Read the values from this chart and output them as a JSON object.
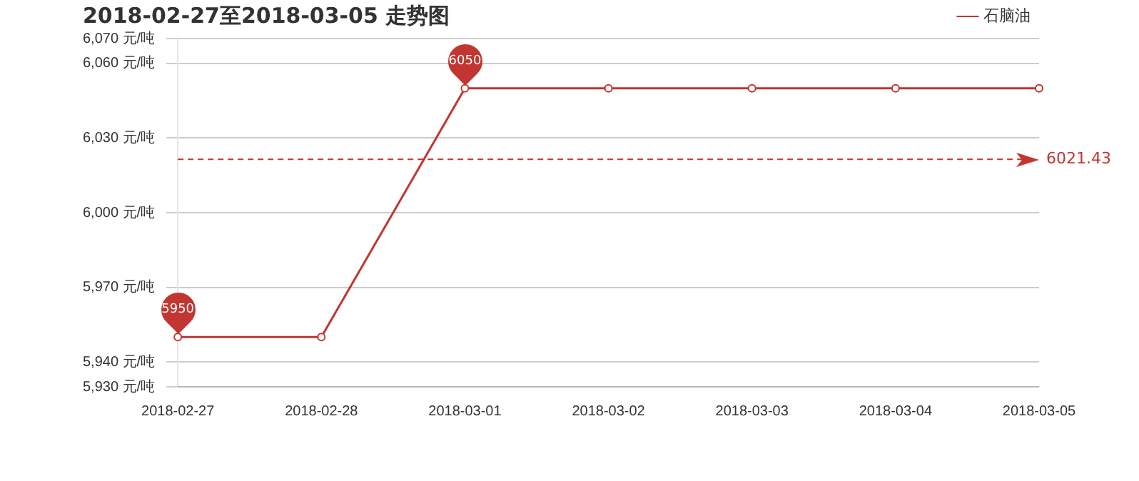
{
  "chart_data": {
    "type": "line",
    "title": "2018-02-27至2018-03-05 走势图",
    "categories": [
      "2018-02-27",
      "2018-02-28",
      "2018-03-01",
      "2018-03-02",
      "2018-03-03",
      "2018-03-04",
      "2018-03-05"
    ],
    "series": [
      {
        "name": "石脑油",
        "color": "#c23531",
        "values": [
          5950,
          5950,
          6050,
          6050,
          6050,
          6050,
          6050
        ]
      }
    ],
    "ylim": [
      5930,
      6070
    ],
    "yticks": [
      {
        "value": 5930,
        "label": "5,930 元/吨"
      },
      {
        "value": 5940,
        "label": "5,940 元/吨"
      },
      {
        "value": 5970,
        "label": "5,970 元/吨"
      },
      {
        "value": 6000,
        "label": "6,000 元/吨"
      },
      {
        "value": 6030,
        "label": "6,030 元/吨"
      },
      {
        "value": 6060,
        "label": "6,060 元/吨"
      },
      {
        "value": 6070,
        "label": "6,070 元/吨"
      }
    ],
    "ref_lines": [
      {
        "axis": "y",
        "value": 6021.43,
        "label": "6021.43",
        "color": "#c23531",
        "line_style": "dashed"
      }
    ],
    "annotations": [
      {
        "text": "5950",
        "x": "2018-02-27",
        "y": 5950
      },
      {
        "text": "6050",
        "x": "2018-03-01",
        "y": 6050
      }
    ],
    "grid": "y",
    "legend": "top right",
    "marker": "circle",
    "line_style": "solid"
  }
}
